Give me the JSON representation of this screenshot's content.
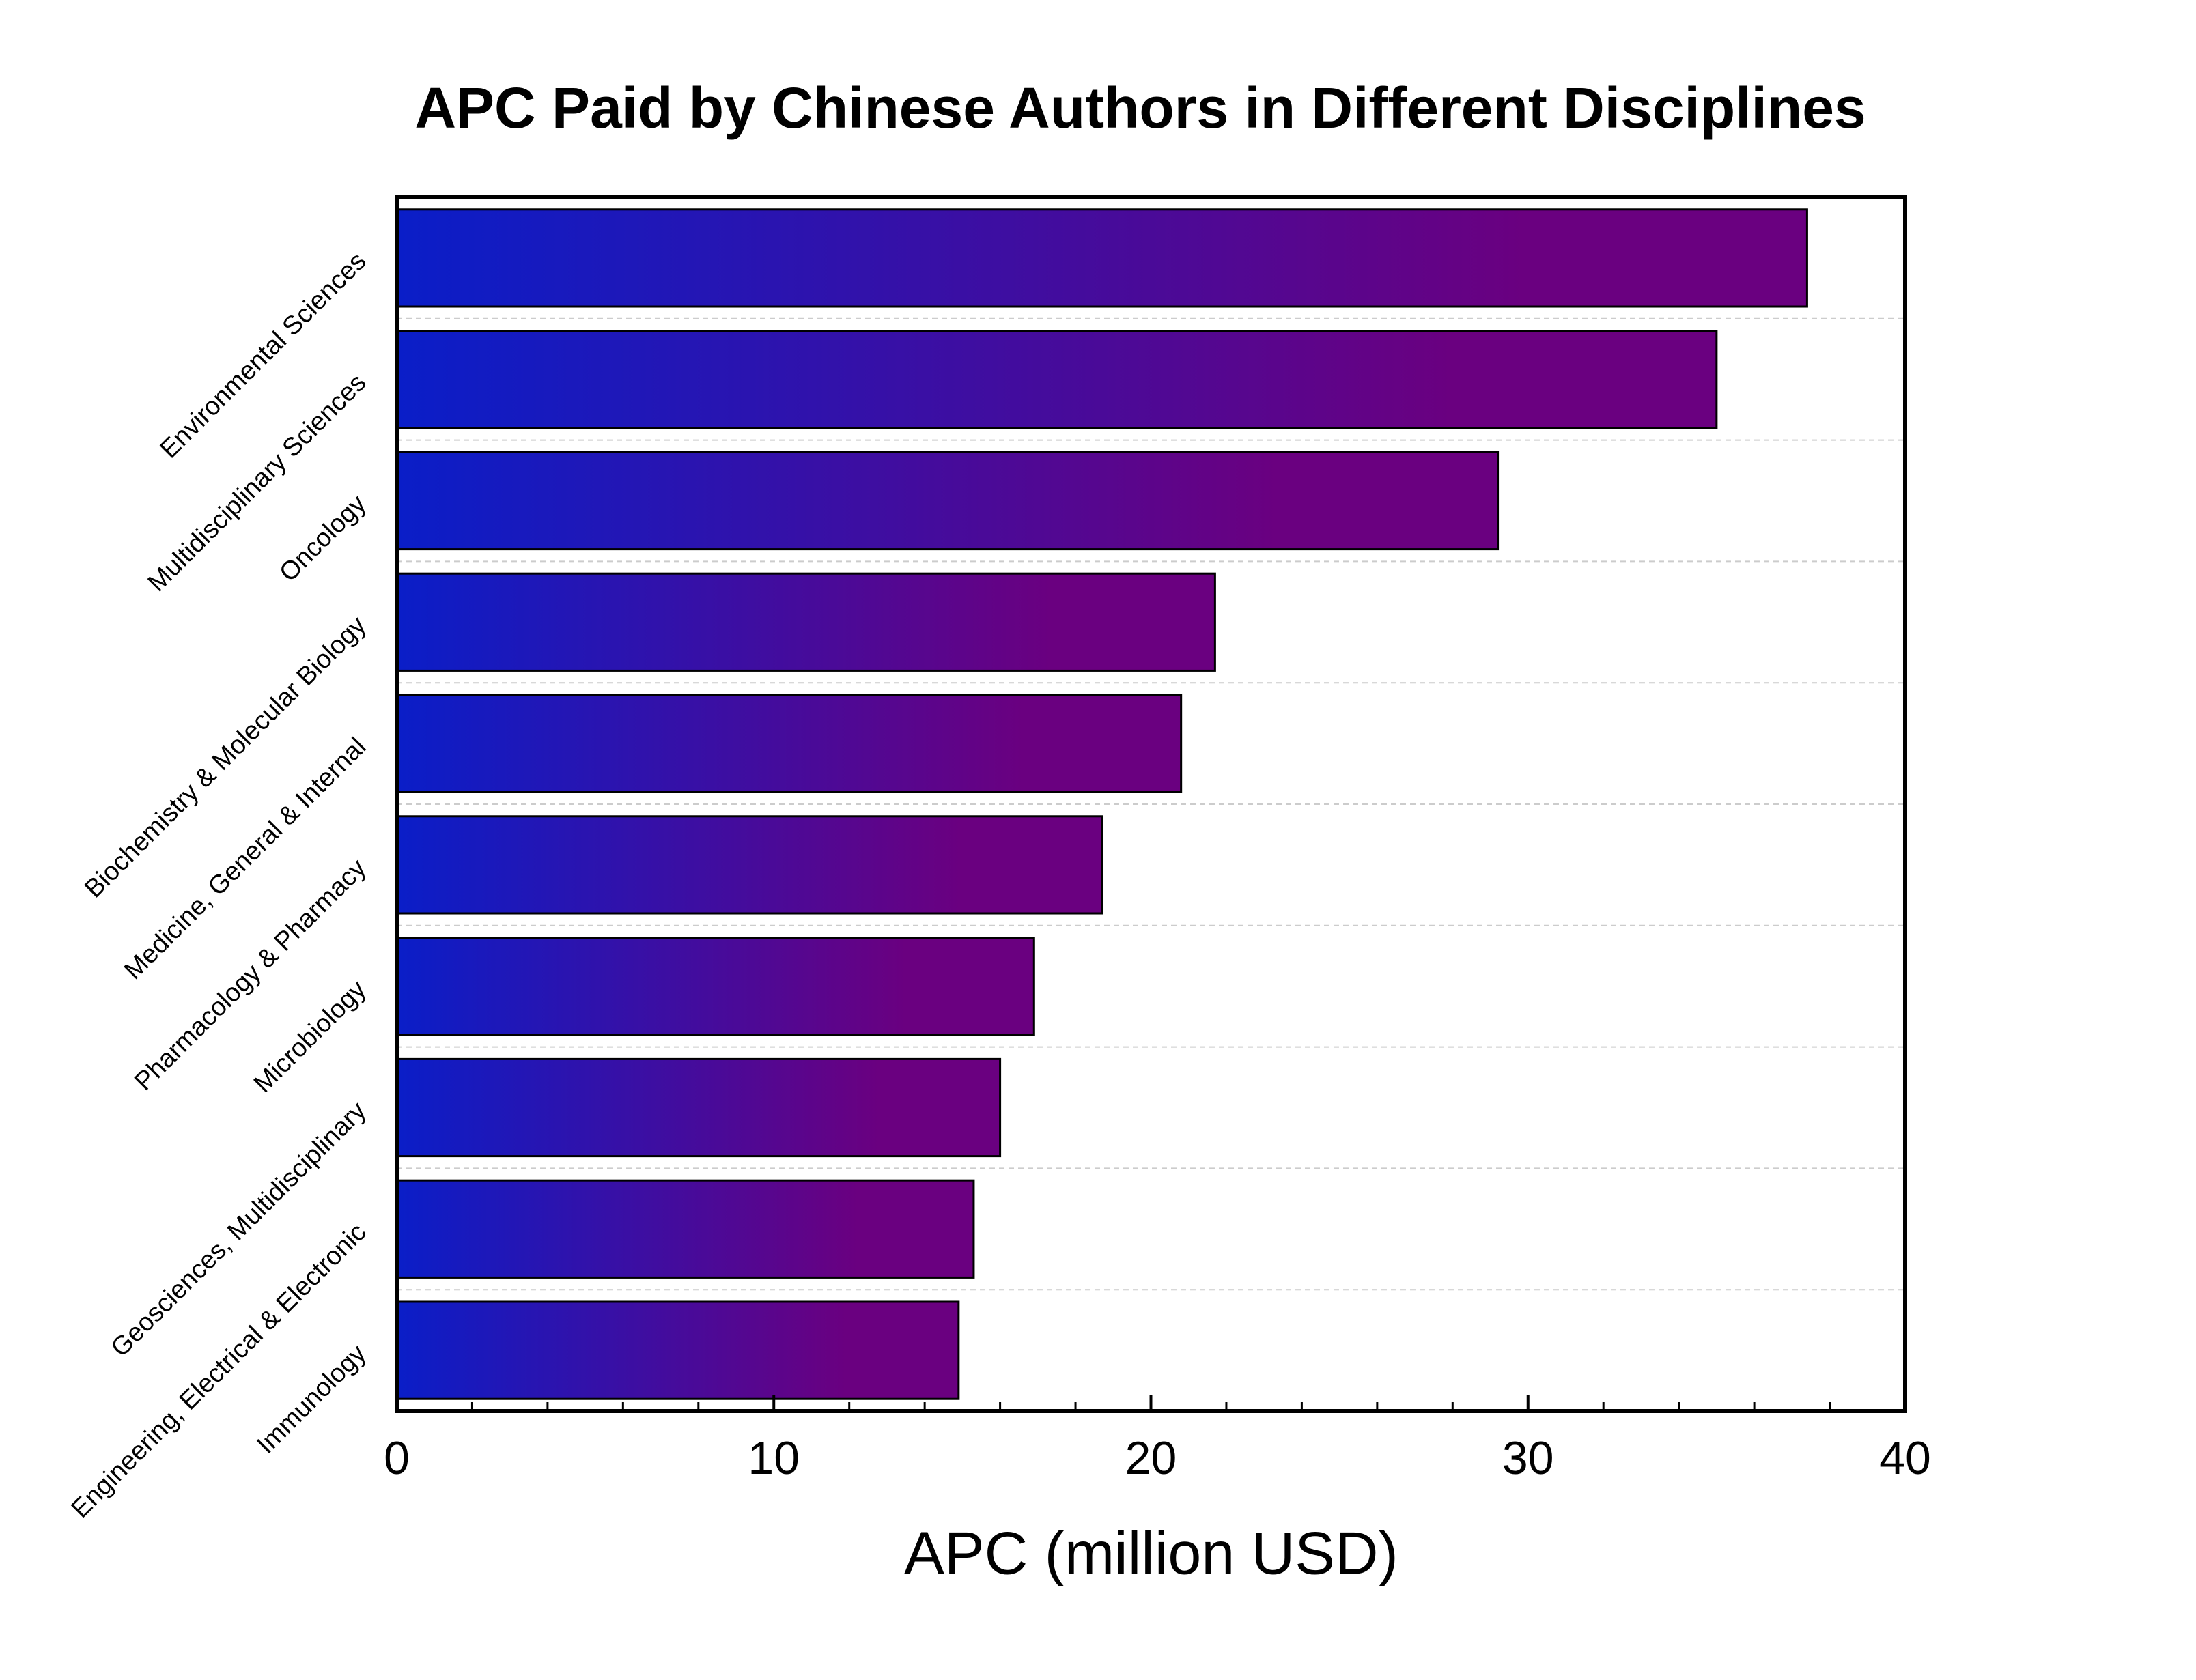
{
  "chart_data": {
    "type": "barh",
    "title": "APC Paid by Chinese Authors in Different Disciplines",
    "xlabel": "APC (million USD)",
    "categories": [
      "Environmental Sciences",
      "Multidisciplinary Sciences",
      "Oncology",
      "Biochemistry & Molecular Biology",
      "Medicine, General & Internal",
      "Pharmacology & Pharmacy",
      "Microbiology",
      "Geosciences, Multidisciplinary",
      "Engineering, Electrical & Electronic",
      "Immunology"
    ],
    "values": [
      37.4,
      35.0,
      29.2,
      21.7,
      20.8,
      18.7,
      16.9,
      16.0,
      15.3,
      14.9
    ],
    "color_start": "#0a1ec8",
    "color_end": "#6a0080",
    "xlim": [
      0,
      40
    ],
    "xticks": [
      0,
      10,
      20,
      30,
      40
    ],
    "xminorticks": [
      2,
      4,
      6,
      8,
      12,
      14,
      16,
      18,
      22,
      24,
      26,
      28,
      32,
      34,
      36,
      38
    ],
    "grid": true
  }
}
